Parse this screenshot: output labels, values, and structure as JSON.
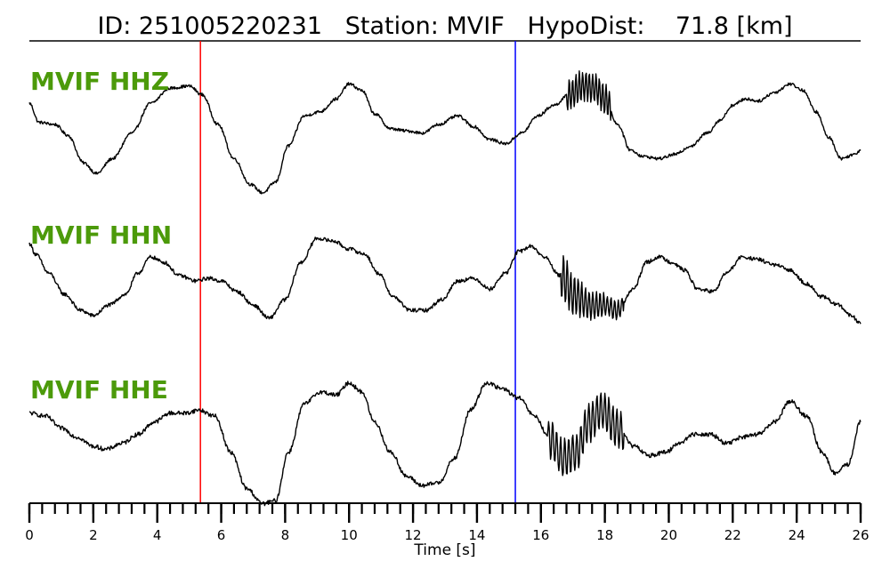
{
  "title": {
    "id_label": "ID:",
    "id_value": "251005220231",
    "station_label": "Station:",
    "station_value": "MVIF",
    "dist_label": "HypoDist:",
    "dist_value": "71.8",
    "dist_unit": "[km]"
  },
  "chart_data": {
    "type": "line",
    "xlabel": "Time [s]",
    "xlim": [
      0,
      26
    ],
    "major_ticks": [
      0,
      2,
      4,
      6,
      8,
      10,
      12,
      14,
      16,
      18,
      20,
      22,
      24,
      26
    ],
    "tick_labels": [
      "0",
      "2",
      "4",
      "6",
      "8",
      "10",
      "12",
      "14",
      "16",
      "18",
      "20",
      "22",
      "24",
      "26"
    ],
    "minor_tick_step": 0.4,
    "markers": [
      {
        "name": "P pick",
        "time": 5.35,
        "color": "#ff0000"
      },
      {
        "name": "S pick",
        "time": 15.2,
        "color": "#0000ff"
      }
    ],
    "series": [
      {
        "name": "MVIF HHZ",
        "baseline": 0.0,
        "points": [
          [
            0,
            0.5
          ],
          [
            0.3,
            0.05
          ],
          [
            0.8,
            0.0
          ],
          [
            1.2,
            -0.25
          ],
          [
            1.7,
            -0.9
          ],
          [
            2.1,
            -1.15
          ],
          [
            2.6,
            -0.8
          ],
          [
            3.2,
            -0.2
          ],
          [
            3.8,
            0.5
          ],
          [
            4.4,
            0.85
          ],
          [
            5.0,
            0.9
          ],
          [
            5.4,
            0.7
          ],
          [
            5.9,
            0.0
          ],
          [
            6.4,
            -0.8
          ],
          [
            6.9,
            -1.4
          ],
          [
            7.3,
            -1.6
          ],
          [
            7.7,
            -1.35
          ],
          [
            8.1,
            -0.5
          ],
          [
            8.6,
            0.2
          ],
          [
            9.1,
            0.3
          ],
          [
            9.6,
            0.6
          ],
          [
            10.0,
            0.95
          ],
          [
            10.4,
            0.8
          ],
          [
            10.8,
            0.25
          ],
          [
            11.3,
            -0.1
          ],
          [
            11.8,
            -0.15
          ],
          [
            12.3,
            -0.2
          ],
          [
            12.8,
            0.0
          ],
          [
            13.4,
            0.2
          ],
          [
            13.9,
            -0.05
          ],
          [
            14.4,
            -0.35
          ],
          [
            14.9,
            -0.45
          ],
          [
            15.4,
            -0.2
          ],
          [
            15.9,
            0.2
          ],
          [
            16.4,
            0.45
          ],
          [
            16.9,
            0.7
          ],
          [
            17.3,
            0.9
          ],
          [
            17.7,
            0.85
          ],
          [
            18.0,
            0.6
          ],
          [
            18.4,
            0.0
          ],
          [
            18.8,
            -0.6
          ],
          [
            19.2,
            -0.75
          ],
          [
            19.7,
            -0.8
          ],
          [
            20.2,
            -0.7
          ],
          [
            20.7,
            -0.5
          ],
          [
            21.2,
            -0.2
          ],
          [
            21.6,
            0.1
          ],
          [
            22.0,
            0.45
          ],
          [
            22.4,
            0.6
          ],
          [
            22.8,
            0.55
          ],
          [
            23.3,
            0.75
          ],
          [
            23.8,
            0.95
          ],
          [
            24.2,
            0.8
          ],
          [
            24.6,
            0.3
          ],
          [
            25.0,
            -0.3
          ],
          [
            25.4,
            -0.8
          ],
          [
            25.8,
            -0.7
          ],
          [
            26,
            -0.6
          ]
        ]
      },
      {
        "name": "MVIF HHN",
        "baseline": 0.0,
        "points": [
          [
            0,
            0.55
          ],
          [
            0.2,
            0.35
          ],
          [
            0.6,
            0.0
          ],
          [
            1.1,
            -0.4
          ],
          [
            1.6,
            -0.7
          ],
          [
            2.0,
            -0.8
          ],
          [
            2.5,
            -0.6
          ],
          [
            3.0,
            -0.4
          ],
          [
            3.4,
            0.0
          ],
          [
            3.8,
            0.3
          ],
          [
            4.2,
            0.2
          ],
          [
            4.7,
            -0.05
          ],
          [
            5.2,
            -0.15
          ],
          [
            5.6,
            -0.1
          ],
          [
            6.0,
            -0.15
          ],
          [
            6.5,
            -0.35
          ],
          [
            7.0,
            -0.6
          ],
          [
            7.5,
            -0.85
          ],
          [
            8.0,
            -0.5
          ],
          [
            8.5,
            0.2
          ],
          [
            9.0,
            0.65
          ],
          [
            9.5,
            0.6
          ],
          [
            10.0,
            0.45
          ],
          [
            10.5,
            0.35
          ],
          [
            10.9,
            0.0
          ],
          [
            11.4,
            -0.45
          ],
          [
            11.9,
            -0.7
          ],
          [
            12.4,
            -0.7
          ],
          [
            12.9,
            -0.5
          ],
          [
            13.4,
            -0.15
          ],
          [
            13.9,
            -0.1
          ],
          [
            14.4,
            -0.3
          ],
          [
            14.9,
            0.0
          ],
          [
            15.3,
            0.4
          ],
          [
            15.7,
            0.5
          ],
          [
            16.1,
            0.3
          ],
          [
            16.6,
            -0.05
          ],
          [
            17.1,
            -0.45
          ],
          [
            17.5,
            -0.6
          ],
          [
            17.9,
            -0.6
          ],
          [
            18.4,
            -0.7
          ],
          [
            18.9,
            -0.3
          ],
          [
            19.3,
            0.2
          ],
          [
            19.7,
            0.3
          ],
          [
            20.1,
            0.2
          ],
          [
            20.5,
            0.05
          ],
          [
            20.9,
            -0.3
          ],
          [
            21.4,
            -0.35
          ],
          [
            21.8,
            0.0
          ],
          [
            22.3,
            0.3
          ],
          [
            22.8,
            0.25
          ],
          [
            23.3,
            0.15
          ],
          [
            23.8,
            0.05
          ],
          [
            24.3,
            -0.2
          ],
          [
            24.8,
            -0.45
          ],
          [
            25.3,
            -0.6
          ],
          [
            25.7,
            -0.8
          ],
          [
            26,
            -0.95
          ]
        ]
      },
      {
        "name": "MVIF HHE",
        "baseline": 0.0,
        "points": [
          [
            0,
            0.05
          ],
          [
            0.5,
            0.0
          ],
          [
            1.0,
            -0.2
          ],
          [
            1.5,
            -0.35
          ],
          [
            2.0,
            -0.5
          ],
          [
            2.4,
            -0.55
          ],
          [
            2.9,
            -0.45
          ],
          [
            3.4,
            -0.3
          ],
          [
            3.9,
            -0.1
          ],
          [
            4.4,
            0.05
          ],
          [
            4.9,
            0.05
          ],
          [
            5.3,
            0.1
          ],
          [
            5.8,
            0.0
          ],
          [
            6.3,
            -0.6
          ],
          [
            6.8,
            -1.2
          ],
          [
            7.3,
            -1.45
          ],
          [
            7.7,
            -1.4
          ],
          [
            8.1,
            -0.6
          ],
          [
            8.6,
            0.2
          ],
          [
            9.1,
            0.4
          ],
          [
            9.6,
            0.35
          ],
          [
            10.0,
            0.55
          ],
          [
            10.4,
            0.4
          ],
          [
            10.8,
            -0.1
          ],
          [
            11.3,
            -0.6
          ],
          [
            11.8,
            -1.0
          ],
          [
            12.3,
            -1.15
          ],
          [
            12.8,
            -1.1
          ],
          [
            13.3,
            -0.7
          ],
          [
            13.8,
            0.1
          ],
          [
            14.3,
            0.55
          ],
          [
            14.8,
            0.45
          ],
          [
            15.3,
            0.3
          ],
          [
            15.8,
            0.0
          ],
          [
            16.3,
            -0.4
          ],
          [
            16.7,
            -0.7
          ],
          [
            17.1,
            -0.6
          ],
          [
            17.5,
            -0.1
          ],
          [
            17.9,
            0.1
          ],
          [
            18.4,
            -0.2
          ],
          [
            18.9,
            -0.5
          ],
          [
            19.4,
            -0.65
          ],
          [
            19.9,
            -0.6
          ],
          [
            20.3,
            -0.45
          ],
          [
            20.8,
            -0.3
          ],
          [
            21.3,
            -0.3
          ],
          [
            21.8,
            -0.45
          ],
          [
            22.3,
            -0.35
          ],
          [
            22.8,
            -0.3
          ],
          [
            23.3,
            -0.1
          ],
          [
            23.8,
            0.25
          ],
          [
            24.3,
            0.0
          ],
          [
            24.8,
            -0.6
          ],
          [
            25.2,
            -0.95
          ],
          [
            25.6,
            -0.8
          ],
          [
            26,
            -0.1
          ]
        ]
      }
    ]
  }
}
